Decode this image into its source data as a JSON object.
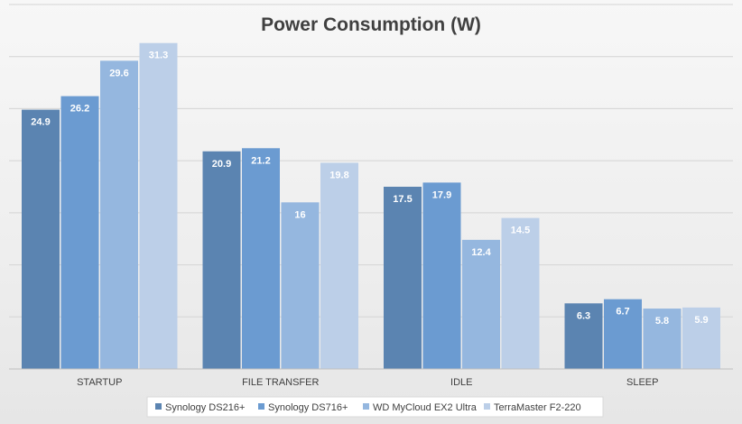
{
  "chart_data": {
    "type": "bar",
    "title": "Power Consumption (W)",
    "xlabel": "",
    "ylabel": "",
    "categories": [
      "STARTUP",
      "FILE TRANSFER",
      "IDLE",
      "SLEEP"
    ],
    "series": [
      {
        "name": "Synology DS216+",
        "values": [
          24.9,
          20.9,
          17.5,
          6.3
        ],
        "color": "#5b84b1"
      },
      {
        "name": "Synology DS716+",
        "values": [
          26.2,
          21.2,
          17.9,
          6.7
        ],
        "color": "#6b9bd1"
      },
      {
        "name": "WD MyCloud EX2 Ultra",
        "values": [
          29.6,
          16,
          12.4,
          5.8
        ],
        "color": "#95b7df"
      },
      {
        "name": "TerraMaster F2-220",
        "values": [
          31.3,
          19.8,
          14.5,
          5.9
        ],
        "color": "#bccfe8"
      }
    ],
    "ylim": [
      0,
      35
    ],
    "grid": true,
    "legend_position": "bottom"
  }
}
